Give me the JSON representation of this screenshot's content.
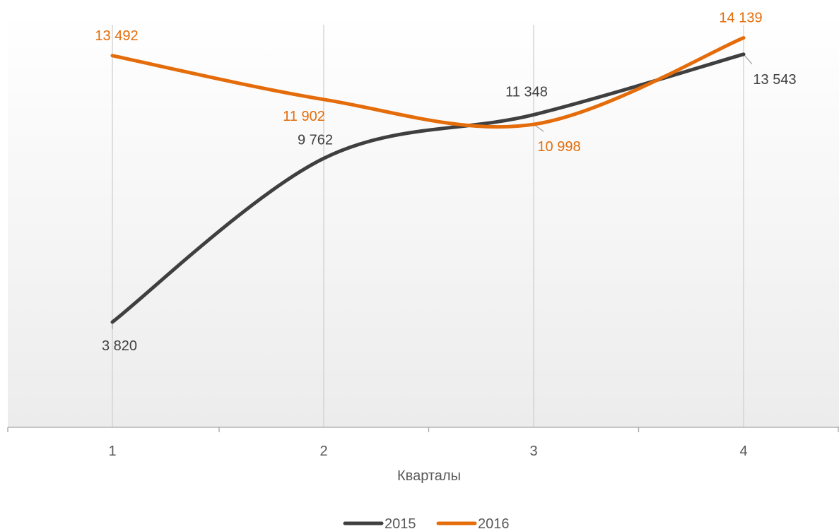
{
  "chart_data": {
    "type": "line",
    "categories": [
      "1",
      "2",
      "3",
      "4"
    ],
    "xlabel": "Кварталы",
    "ylabel": "",
    "ylim": [
      0,
      15000
    ],
    "grid": "vertical",
    "legend": "bottom",
    "series": [
      {
        "name": "2015",
        "color": "#3f3f3f",
        "values": [
          3820,
          9762,
          11348,
          13543
        ],
        "labels": [
          "3 820",
          "9 762",
          "11 348",
          "13 543"
        ]
      },
      {
        "name": "2016",
        "color": "#e46c0a",
        "values": [
          13492,
          11902,
          10998,
          14139
        ],
        "labels": [
          "13 492",
          "11 902",
          "10 998",
          "14 139"
        ]
      }
    ]
  }
}
